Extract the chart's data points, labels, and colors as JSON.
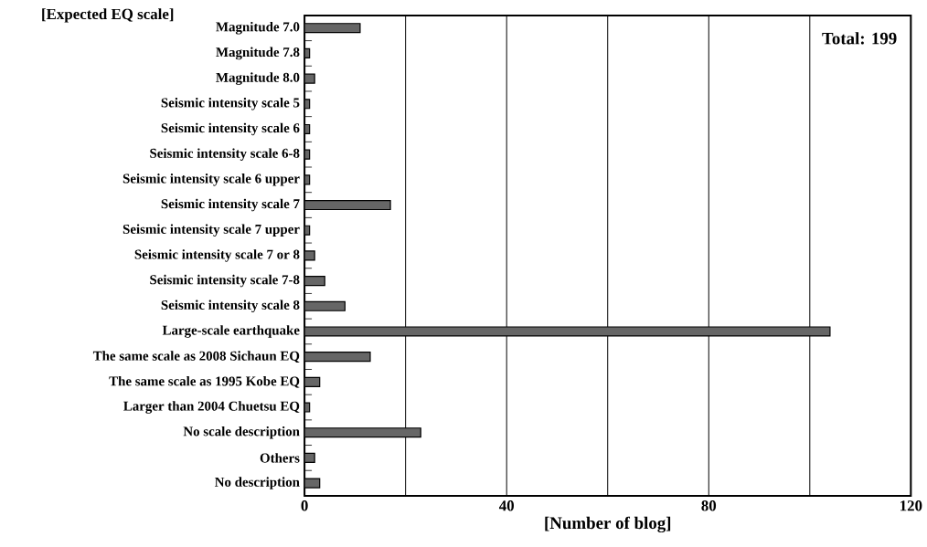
{
  "chart_data": {
    "type": "bar",
    "orientation": "horizontal",
    "title": "[Expected EQ scale]",
    "xlabel": "[Number of blog]",
    "categories": [
      "Magnitude 7.0",
      "Magnitude 7.8",
      "Magnitude 8.0",
      "Seismic intensity scale 5",
      "Seismic intensity scale 6",
      "Seismic intensity scale 6-8",
      "Seismic intensity scale 6 upper",
      "Seismic intensity scale 7",
      "Seismic intensity scale 7 upper",
      "Seismic intensity scale 7 or 8",
      "Seismic intensity scale 7-8",
      "Seismic intensity scale 8",
      "Large-scale earthquake",
      "The same scale as 2008 Sichaun EQ",
      "The same scale as 1995 Kobe EQ",
      "Larger than 2004 Chuetsu EQ",
      "No scale description",
      "Others",
      "No description"
    ],
    "values": [
      11,
      1,
      2,
      1,
      1,
      1,
      1,
      17,
      1,
      2,
      4,
      8,
      104,
      13,
      3,
      1,
      23,
      2,
      3
    ],
    "color": "#666666",
    "xlim": [
      0,
      120
    ],
    "xticks": [
      0,
      {
        "value": 20,
        "label": null
      },
      40,
      {
        "value": 60,
        "label": null
      },
      80,
      {
        "value": 100,
        "label": null
      },
      120
    ],
    "grid": "x",
    "annotations": [
      "Total: 199"
    ]
  }
}
